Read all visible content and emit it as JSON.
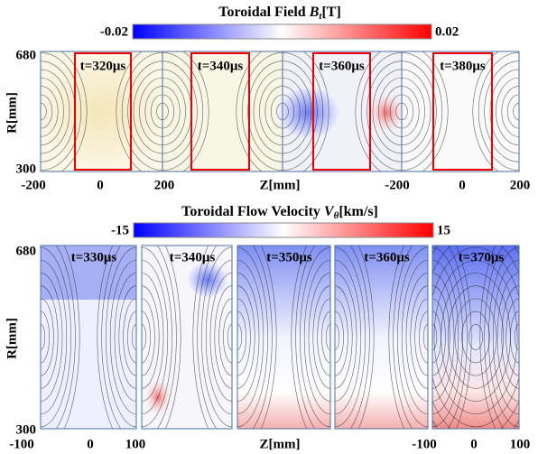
{
  "top": {
    "title": "Toroidal Field ",
    "symbol": "B",
    "subscript": "t",
    "unit": "[T]",
    "colorbar": {
      "min": "-0.02",
      "max": "0.02"
    },
    "y_label": "R[mm]",
    "y_ticks": [
      "680",
      "300"
    ],
    "x_label": "Z[mm]",
    "x_ticks": [
      "-200",
      "0",
      "200",
      "-200",
      "0",
      "200"
    ],
    "frames": [
      "t=320μs",
      "t=340μs",
      "t=360μs",
      "t=380μs"
    ]
  },
  "bottom": {
    "title": "Toroidal Flow Velocity ",
    "symbol": "V",
    "subscript": "θ",
    "unit": "[km/s]",
    "colorbar": {
      "min": "-15",
      "max": "15"
    },
    "y_label": "R[mm]",
    "y_ticks": [
      "680",
      "300"
    ],
    "x_label": "Z[mm]",
    "x_ticks": [
      "-100",
      "0",
      "100",
      "-100",
      "0",
      "100"
    ],
    "frames": [
      "t=330μs",
      "t=340μs",
      "t=350μs",
      "t=360μs",
      "t=370μs"
    ]
  }
}
